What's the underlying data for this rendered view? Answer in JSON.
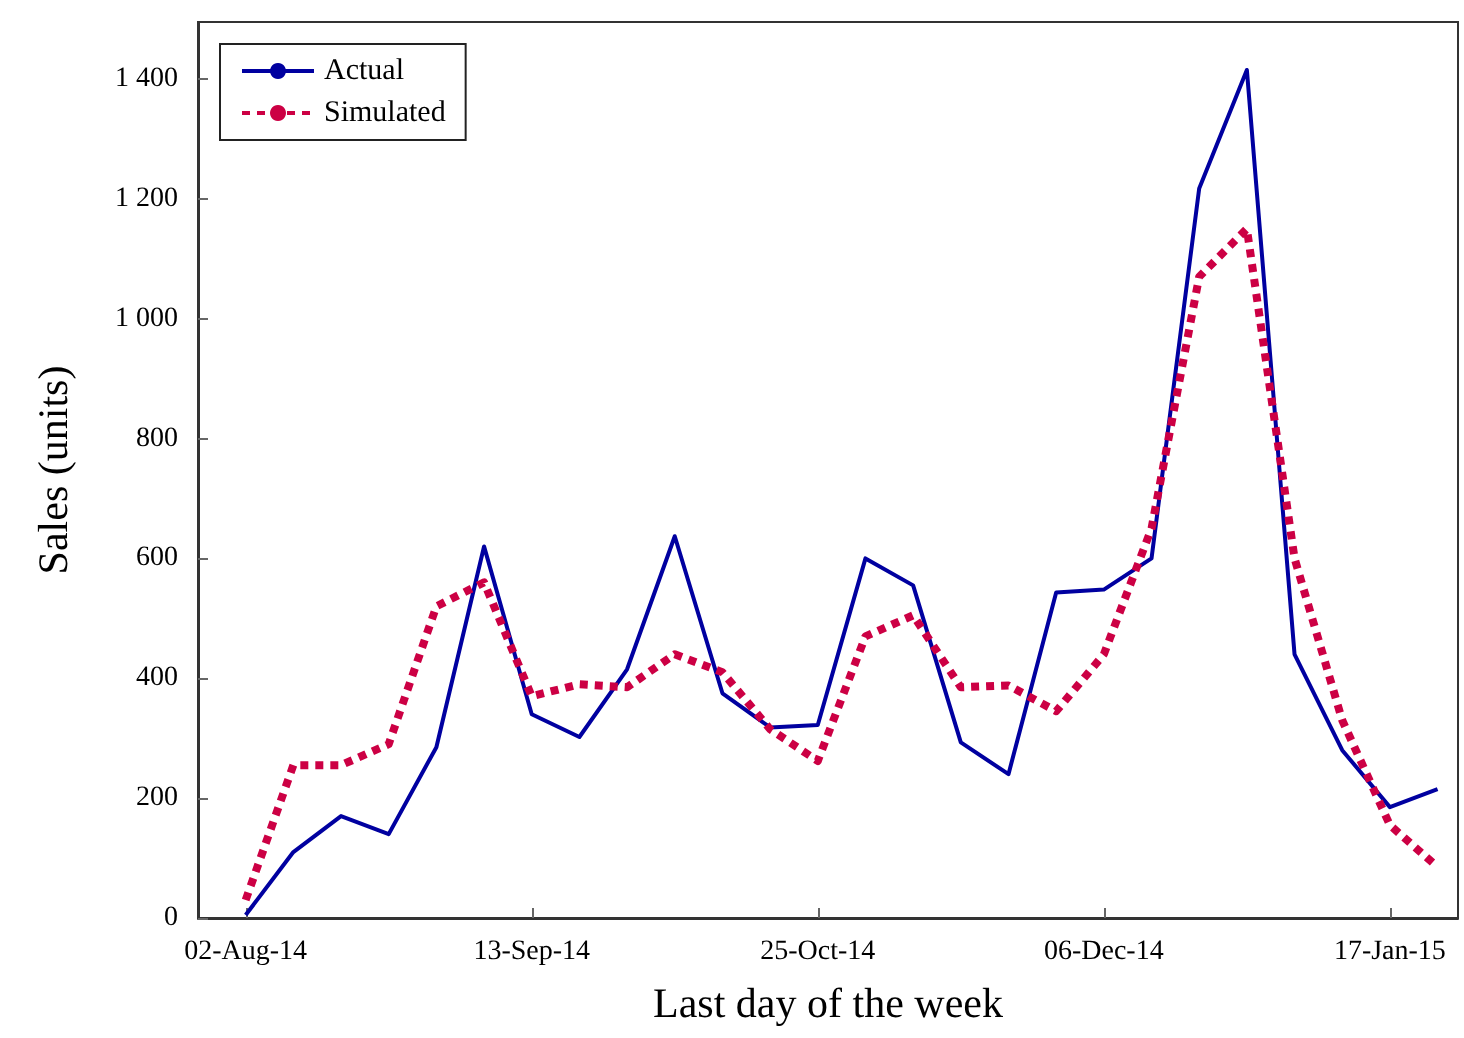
{
  "chart_data": {
    "type": "line",
    "xlabel": "Last day of the week",
    "ylabel": "Sales (units)",
    "x": [
      "2014-08-02",
      "2014-08-09",
      "2014-08-16",
      "2014-08-23",
      "2014-08-30",
      "2014-09-06",
      "2014-09-13",
      "2014-09-20",
      "2014-09-27",
      "2014-10-04",
      "2014-10-11",
      "2014-10-18",
      "2014-10-25",
      "2014-11-01",
      "2014-11-08",
      "2014-11-15",
      "2014-11-22",
      "2014-11-29",
      "2014-12-06",
      "2014-12-13",
      "2014-12-20",
      "2014-12-27",
      "2015-01-03",
      "2015-01-10",
      "2015-01-17",
      "2015-01-24"
    ],
    "series": [
      {
        "name": "Actual",
        "color": "#0000a0",
        "line_style": "solid",
        "values": [
          5,
          110,
          170,
          140,
          285,
          620,
          340,
          302,
          415,
          637,
          375,
          318,
          322,
          600,
          555,
          293,
          240,
          543,
          548,
          600,
          1217,
          1415,
          440,
          280,
          185,
          215
        ]
      },
      {
        "name": "Simulated",
        "color": "#cc0044",
        "line_style": "dashed",
        "values": [
          30,
          255,
          255,
          290,
          520,
          560,
          370,
          390,
          385,
          440,
          410,
          315,
          262,
          470,
          505,
          385,
          388,
          345,
          440,
          650,
          1070,
          1150,
          600,
          330,
          155,
          85
        ]
      }
    ],
    "xlim": [
      "2014-07-26",
      "2015-01-27"
    ],
    "xticks": [
      {
        "value": "2014-08-02",
        "label": "02-Aug-14"
      },
      {
        "value": "2014-09-13",
        "label": "13-Sep-14"
      },
      {
        "value": "2014-10-25",
        "label": "25-Oct-14"
      },
      {
        "value": "2014-12-06",
        "label": "06-Dec-14"
      },
      {
        "value": "2015-01-17",
        "label": "17-Jan-15"
      }
    ],
    "ylim": [
      0,
      1495
    ],
    "yticks": [
      0,
      200,
      400,
      600,
      800,
      {
        "value": 1000,
        "label": "1 000"
      },
      {
        "value": 1200,
        "label": "1 200"
      },
      {
        "value": 1400,
        "label": "1 400"
      }
    ],
    "legend": "top left",
    "marker": "none"
  }
}
